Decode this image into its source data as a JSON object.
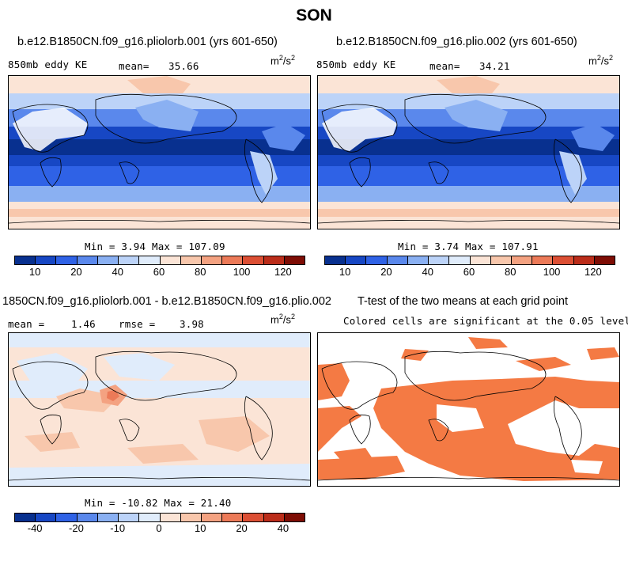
{
  "page_title": "SON",
  "panels": [
    {
      "title": "b.e12.B1850CN.f09_g16.pliolorb.001 (yrs 601-650)",
      "left_label": "850mb eddy KE",
      "mean_label": "mean=",
      "mean_value": "35.66",
      "units_base": "m",
      "units_exp1": "2",
      "units_mid": "/s",
      "units_exp2": "2",
      "minmax": "Min =   3.94 Max = 107.09"
    },
    {
      "title": "b.e12.B1850CN.f09_g16.plio.002 (yrs 601-650)",
      "left_label": "850mb eddy KE",
      "mean_label": "mean=",
      "mean_value": "34.21",
      "units_base": "m",
      "units_exp1": "2",
      "units_mid": "/s",
      "units_exp2": "2",
      "minmax": "Min =   3.74 Max = 107.91"
    },
    {
      "title": "1850CN.f09_g16.pliolorb.001 - b.e12.B1850CN.f09_g16.plio.002",
      "mean_label": "mean =",
      "mean_value": "1.46",
      "rmse_label": "rmse =",
      "rmse_value": "3.98",
      "units_base": "m",
      "units_exp1": "2",
      "units_mid": "/s",
      "units_exp2": "2",
      "minmax": "Min = -10.82 Max =  21.40"
    },
    {
      "title": "T-test of the two means at each grid point",
      "subtitle": "Colored cells are significant at the 0.05 level"
    }
  ],
  "colors": {
    "scale": [
      "#08308f",
      "#1747c4",
      "#2f62e6",
      "#5a88ec",
      "#8ab0f2",
      "#bcd3f8",
      "#e0ecfb",
      "#fbe4d6",
      "#f8c7ac",
      "#f4a281",
      "#ec7a58",
      "#dc4f34",
      "#bb2d1a",
      "#7e0d05"
    ],
    "significant": "#f47a44"
  },
  "chart_data": [
    {
      "type": "heatmap",
      "title": "b.e12.B1850CN.f09_g16.pliolorb.001 (yrs 601-650)",
      "variable": "850mb eddy KE",
      "units": "m2/s2",
      "mean": 35.66,
      "min": 3.94,
      "max": 107.09,
      "colorbar_levels": [
        5,
        10,
        15,
        20,
        30,
        40,
        50,
        60,
        70,
        80,
        90,
        100,
        110,
        120,
        130
      ],
      "colorbar_labels": [
        "10",
        "20",
        "40",
        "60",
        "80",
        "100",
        "120"
      ],
      "colorbar_label_levels": [
        10,
        20,
        40,
        60,
        80,
        100,
        120
      ]
    },
    {
      "type": "heatmap",
      "title": "b.e12.B1850CN.f09_g16.plio.002 (yrs 601-650)",
      "variable": "850mb eddy KE",
      "units": "m2/s2",
      "mean": 34.21,
      "min": 3.74,
      "max": 107.91,
      "colorbar_levels": [
        5,
        10,
        15,
        20,
        30,
        40,
        50,
        60,
        70,
        80,
        90,
        100,
        110,
        120,
        130
      ],
      "colorbar_labels": [
        "10",
        "20",
        "40",
        "60",
        "80",
        "100",
        "120"
      ],
      "colorbar_label_levels": [
        10,
        20,
        40,
        60,
        80,
        100,
        120
      ]
    },
    {
      "type": "heatmap",
      "title": "1850CN.f09_g16.pliolorb.001 - b.e12.B1850CN.f09_g16.plio.002",
      "units": "m2/s2",
      "mean": 1.46,
      "rmse": 3.98,
      "min": -10.82,
      "max": 21.4,
      "colorbar_levels": [
        -50,
        -40,
        -30,
        -20,
        -15,
        -10,
        -5,
        0,
        5,
        10,
        15,
        20,
        30,
        40,
        50
      ],
      "colorbar_labels": [
        "-40",
        "-20",
        "-10",
        "0",
        "10",
        "20",
        "40"
      ],
      "colorbar_label_levels": [
        -40,
        -20,
        -10,
        0,
        10,
        20,
        40
      ]
    },
    {
      "type": "heatmap",
      "title": "T-test of the two means at each grid point",
      "annotation": "Colored cells are significant at the 0.05 level",
      "significance_level": 0.05
    }
  ]
}
